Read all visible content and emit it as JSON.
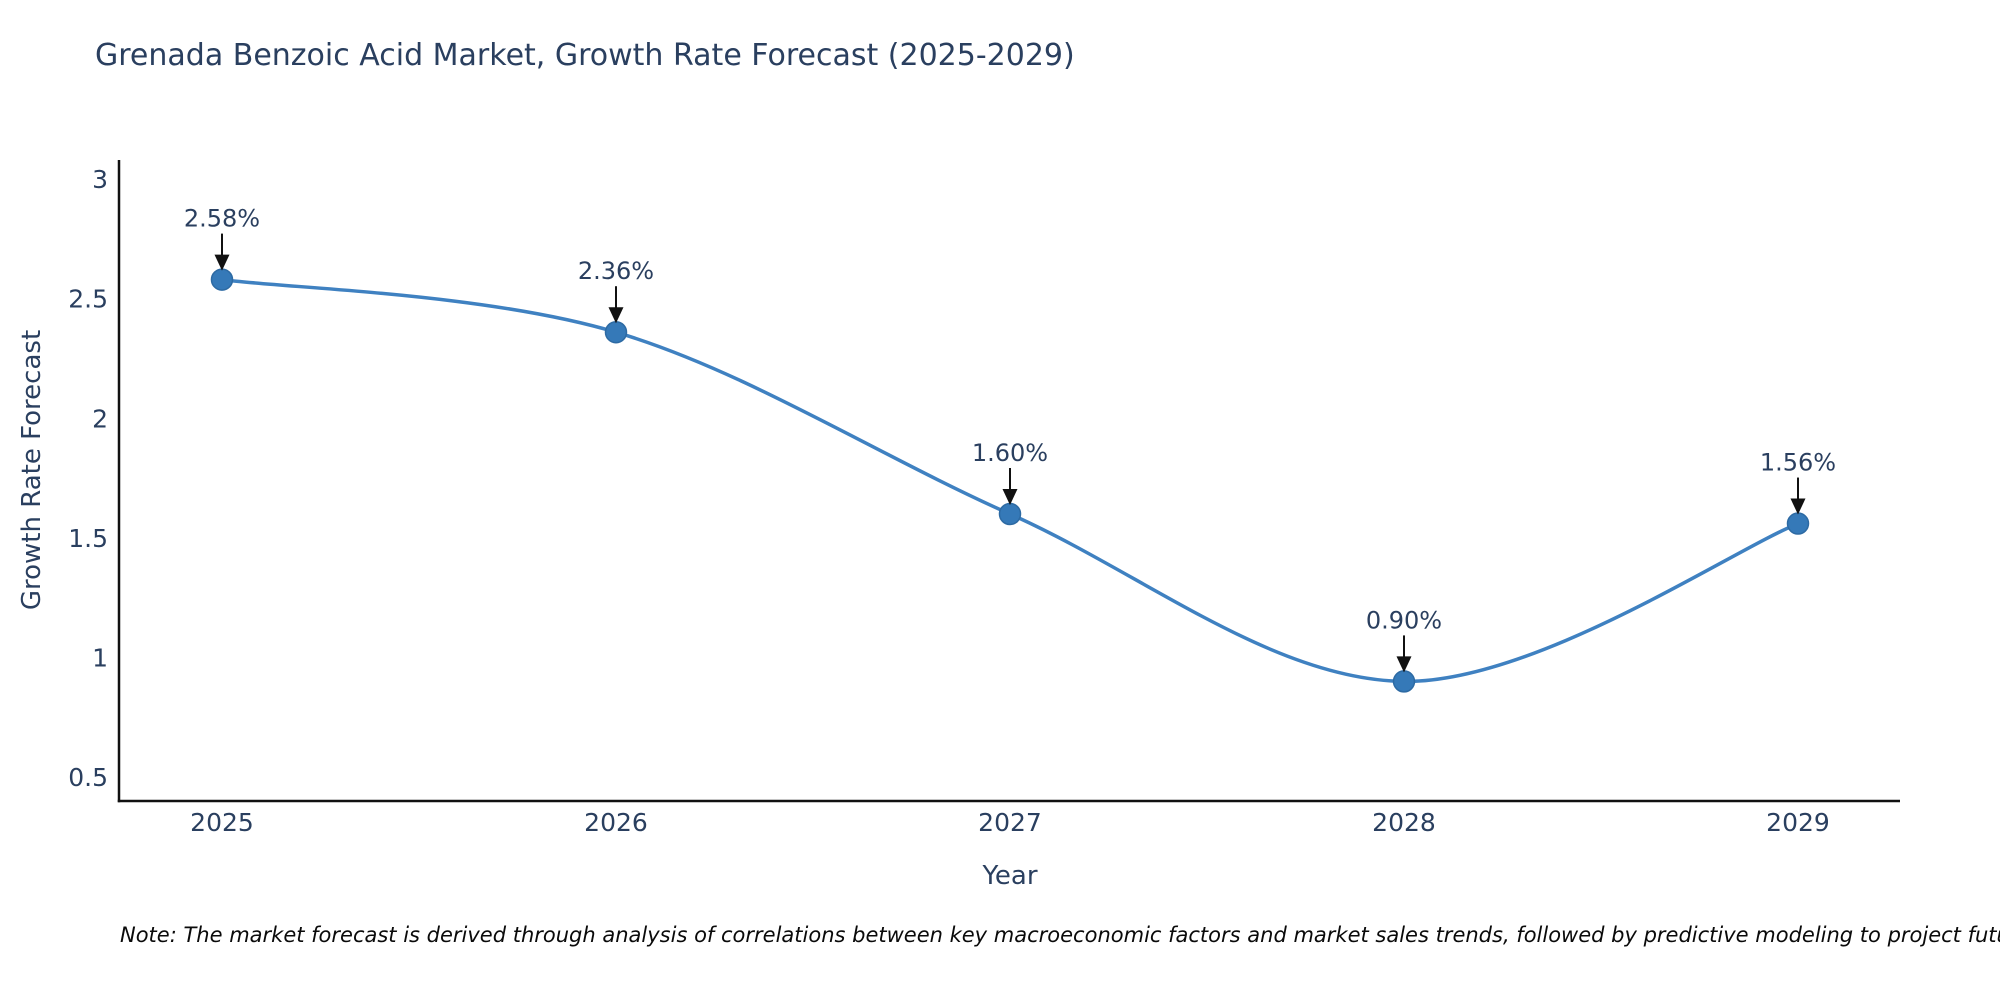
{
  "title": "Grenada Benzoic Acid Market, Growth Rate Forecast (2025-2029)",
  "note": "Note: The market forecast is derived through analysis of correlations between key macroeconomic factors and market sales trends, followed by predictive modeling to project future sales",
  "chart_data": {
    "type": "line",
    "title": "Grenada Benzoic Acid Market, Growth Rate Forecast (2025-2029)",
    "xlabel": "Year",
    "ylabel": "Growth Rate Forecast",
    "categories": [
      "2025",
      "2026",
      "2027",
      "2028",
      "2029"
    ],
    "values": [
      2.58,
      2.36,
      1.6,
      0.9,
      1.56
    ],
    "point_labels": [
      "2.58%",
      "2.36%",
      "1.60%",
      "0.90%",
      "1.56%"
    ],
    "yticks": [
      0.5,
      1,
      1.5,
      2,
      2.5,
      3
    ],
    "ytick_labels": [
      "0.5",
      "1",
      "1.5",
      "2",
      "2.5",
      "3"
    ],
    "ylim": [
      0.4,
      3.08
    ],
    "xlim": [
      -0.2614,
      4.2589
    ],
    "line_style": "spline",
    "markers": true,
    "grid": false,
    "legend_position": "none",
    "colors": {
      "line": "#3f81c1",
      "marker_fill": "#3579b8",
      "marker_outline": "#2d6aa3",
      "axis_line": "#111111",
      "tick_text": "#2a3f5f",
      "annotation_text": "#2a3f5f",
      "annotation_arrow": "#111111",
      "note_text": "#0a0a0a",
      "background": "#ffffff"
    }
  }
}
